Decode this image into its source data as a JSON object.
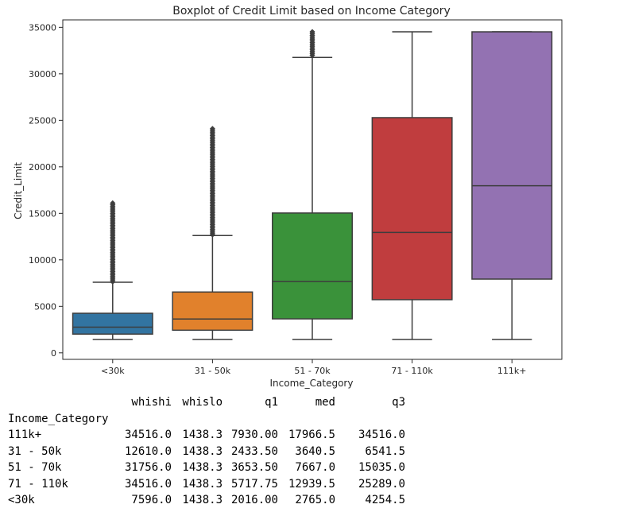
{
  "chart_data": {
    "type": "boxplot",
    "title": "Boxplot of Credit Limit based on Income Category",
    "xlabel": "Income_Category",
    "ylabel": "Credit_Limit",
    "ylim": [
      0,
      35000
    ],
    "yticks": [
      0,
      5000,
      10000,
      15000,
      20000,
      25000,
      30000,
      35000
    ],
    "grid": false,
    "categories": [
      "<30k",
      "31 - 50k",
      "51 - 70k",
      "71 - 110k",
      "111k+"
    ],
    "colors": [
      "#3274a1",
      "#e1812c",
      "#3a923a",
      "#c03d3e",
      "#9372b2"
    ],
    "boxes": [
      {
        "category": "<30k",
        "whislo": 1438.3,
        "q1": 2016.0,
        "med": 2765.0,
        "q3": 4254.5,
        "whishi": 7596.0,
        "outliers_range": [
          7650,
          16100
        ]
      },
      {
        "category": "31 - 50k",
        "whislo": 1438.3,
        "q1": 2433.5,
        "med": 3640.5,
        "q3": 6541.5,
        "whishi": 12610.0,
        "outliers_range": [
          12700,
          24100
        ]
      },
      {
        "category": "51 - 70k",
        "whislo": 1438.3,
        "q1": 3653.5,
        "med": 7667.0,
        "q3": 15035.0,
        "whishi": 31756.0,
        "outliers_range": [
          32000,
          34516
        ]
      },
      {
        "category": "71 - 110k",
        "whislo": 1438.3,
        "q1": 5717.75,
        "med": 12939.5,
        "q3": 25289.0,
        "whishi": 34516.0,
        "outliers_range": null
      },
      {
        "category": "111k+",
        "whislo": 1438.3,
        "q1": 7930.0,
        "med": 17966.5,
        "q3": 34516.0,
        "whishi": 34516.0,
        "outliers_range": null
      }
    ]
  },
  "table": {
    "index_name": "Income_Category",
    "columns": [
      "whishi",
      "whislo",
      "q1",
      "med",
      "q3"
    ],
    "rows": [
      {
        "label": "111k+",
        "cells": [
          "34516.0",
          "1438.3",
          "7930.00",
          "17966.5",
          "34516.0"
        ]
      },
      {
        "label": "31 - 50k",
        "cells": [
          "12610.0",
          "1438.3",
          "2433.50",
          "3640.5",
          "6541.5"
        ]
      },
      {
        "label": "51 - 70k",
        "cells": [
          "31756.0",
          "1438.3",
          "3653.50",
          "7667.0",
          "15035.0"
        ]
      },
      {
        "label": "71 - 110k",
        "cells": [
          "34516.0",
          "1438.3",
          "5717.75",
          "12939.5",
          "25289.0"
        ]
      },
      {
        "label": "<30k",
        "cells": [
          "7596.0",
          "1438.3",
          "2016.00",
          "2765.0",
          "4254.5"
        ]
      }
    ]
  }
}
